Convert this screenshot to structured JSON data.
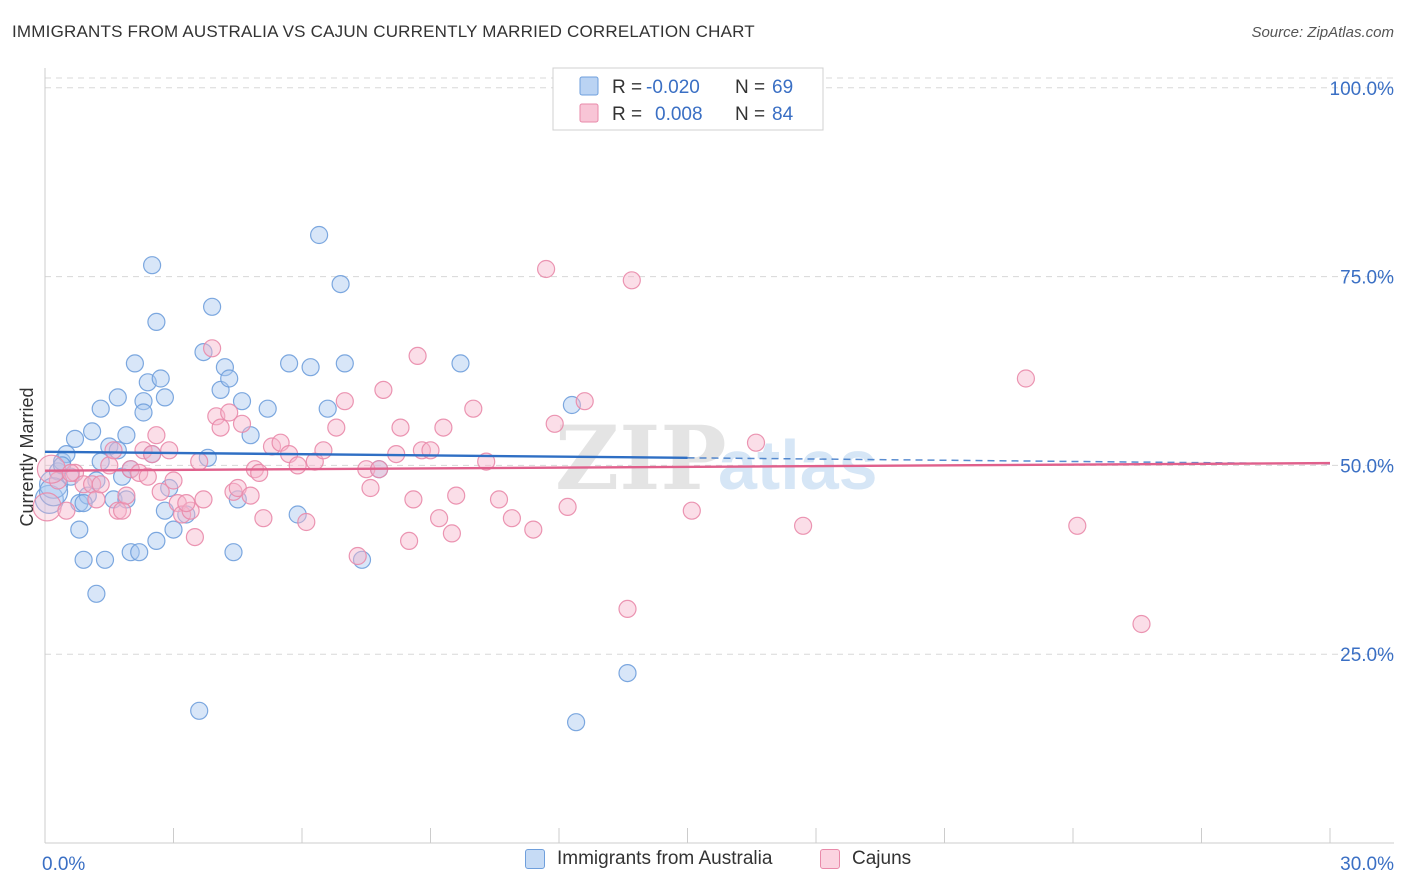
{
  "title": "IMMIGRANTS FROM AUSTRALIA VS CAJUN CURRENTLY MARRIED CORRELATION CHART",
  "source": "Source: ZipAtlas.com",
  "watermark": {
    "zip": "ZIP",
    "atlas": "atlas"
  },
  "colors": {
    "blue_fill": "#a9c8f0",
    "blue_stroke": "#6f9fdc",
    "blue_line": "#2f6fc4",
    "pink_fill": "#f6b6cc",
    "pink_stroke": "#e98aaa",
    "pink_line": "#e0608c",
    "value_text": "#3a6fc4",
    "grid": "#d8d8d8"
  },
  "legend_top": {
    "rows": [
      {
        "r_label": "R =",
        "r_value": "-0.020",
        "n_label": "N =",
        "n_value": "69"
      },
      {
        "r_label": "R =",
        "r_value": "0.008",
        "n_label": "N =",
        "n_value": "84"
      }
    ]
  },
  "legend_bottom": [
    {
      "label": "Immigrants from Australia"
    },
    {
      "label": "Cajuns"
    }
  ],
  "chart_data": {
    "type": "scatter",
    "xlabel": "",
    "ylabel": "Currently Married",
    "xlim": [
      0,
      30
    ],
    "ylim": [
      0,
      105
    ],
    "x_tick_labels": [
      "0.0%",
      "30.0%"
    ],
    "y_ticks": [
      25,
      50,
      75,
      100
    ],
    "y_tick_labels": [
      "25.0%",
      "50.0%",
      "75.0%",
      "100.0%"
    ],
    "grid": true,
    "series": [
      {
        "name": "Immigrants from Australia",
        "r": -0.02,
        "n": 69,
        "trend": {
          "x": [
            0,
            15,
            30
          ],
          "y": [
            51.8,
            51.0,
            50.2
          ],
          "solid_until": 15
        },
        "points": [
          [
            0.1,
            45.5
          ],
          [
            0.2,
            47.5
          ],
          [
            0.3,
            49.2
          ],
          [
            0.4,
            50.5
          ],
          [
            0.5,
            51.5
          ],
          [
            0.6,
            48.5
          ],
          [
            0.7,
            53.5
          ],
          [
            0.8,
            45.0
          ],
          [
            0.8,
            41.5
          ],
          [
            0.9,
            37.5
          ],
          [
            1.0,
            46.0
          ],
          [
            1.1,
            54.5
          ],
          [
            1.2,
            48.0
          ],
          [
            1.3,
            50.5
          ],
          [
            1.2,
            33.0
          ],
          [
            1.3,
            57.5
          ],
          [
            1.4,
            37.5
          ],
          [
            1.5,
            52.5
          ],
          [
            1.6,
            45.5
          ],
          [
            1.7,
            52.0
          ],
          [
            1.7,
            59.0
          ],
          [
            1.8,
            48.5
          ],
          [
            1.9,
            54.0
          ],
          [
            1.9,
            45.5
          ],
          [
            2.0,
            49.5
          ],
          [
            2.0,
            38.5
          ],
          [
            2.1,
            63.5
          ],
          [
            2.2,
            38.5
          ],
          [
            2.3,
            58.5
          ],
          [
            2.3,
            57.0
          ],
          [
            2.4,
            61.0
          ],
          [
            2.5,
            51.5
          ],
          [
            2.5,
            76.5
          ],
          [
            2.6,
            40.0
          ],
          [
            2.6,
            69.0
          ],
          [
            2.7,
            61.5
          ],
          [
            2.8,
            44.0
          ],
          [
            2.8,
            59.0
          ],
          [
            2.9,
            47.0
          ],
          [
            3.0,
            41.5
          ],
          [
            3.3,
            43.5
          ],
          [
            3.6,
            17.5
          ],
          [
            3.7,
            65.0
          ],
          [
            3.8,
            51.0
          ],
          [
            3.9,
            71.0
          ],
          [
            4.1,
            60.0
          ],
          [
            4.2,
            63.0
          ],
          [
            4.3,
            61.5
          ],
          [
            4.4,
            38.5
          ],
          [
            4.5,
            45.5
          ],
          [
            4.6,
            58.5
          ],
          [
            4.8,
            54.0
          ],
          [
            5.2,
            57.5
          ],
          [
            5.7,
            63.5
          ],
          [
            5.9,
            43.5
          ],
          [
            6.2,
            63.0
          ],
          [
            6.4,
            80.5
          ],
          [
            6.6,
            57.5
          ],
          [
            6.9,
            74.0
          ],
          [
            7.0,
            63.5
          ],
          [
            7.4,
            37.5
          ],
          [
            7.8,
            49.5
          ],
          [
            9.7,
            63.5
          ],
          [
            12.3,
            58.0
          ],
          [
            12.4,
            16.0
          ],
          [
            13.6,
            22.5
          ],
          [
            0.2,
            46.5
          ],
          [
            0.4,
            50.0
          ],
          [
            0.9,
            45.0
          ]
        ]
      },
      {
        "name": "Cajuns",
        "r": 0.008,
        "n": 84,
        "trend": {
          "x": [
            0,
            30
          ],
          "y": [
            49.3,
            50.3
          ],
          "solid_until": 30
        },
        "points": [
          [
            0.05,
            44.5
          ],
          [
            0.3,
            48.0
          ],
          [
            0.5,
            44.0
          ],
          [
            0.7,
            49.0
          ],
          [
            0.9,
            47.5
          ],
          [
            1.1,
            47.5
          ],
          [
            1.2,
            45.5
          ],
          [
            1.3,
            47.5
          ],
          [
            1.5,
            50.0
          ],
          [
            1.6,
            52.0
          ],
          [
            1.7,
            44.0
          ],
          [
            1.8,
            44.0
          ],
          [
            1.9,
            46.0
          ],
          [
            2.0,
            49.5
          ],
          [
            2.2,
            49.0
          ],
          [
            2.3,
            52.0
          ],
          [
            2.4,
            48.5
          ],
          [
            2.5,
            51.5
          ],
          [
            2.6,
            54.0
          ],
          [
            2.7,
            46.5
          ],
          [
            2.9,
            52.0
          ],
          [
            3.0,
            48.0
          ],
          [
            3.1,
            45.0
          ],
          [
            3.2,
            43.5
          ],
          [
            3.4,
            44.0
          ],
          [
            3.5,
            40.5
          ],
          [
            3.6,
            50.5
          ],
          [
            3.7,
            45.5
          ],
          [
            3.9,
            65.5
          ],
          [
            4.0,
            56.5
          ],
          [
            4.1,
            55.0
          ],
          [
            4.3,
            57.0
          ],
          [
            4.4,
            46.5
          ],
          [
            4.5,
            47.0
          ],
          [
            4.6,
            55.5
          ],
          [
            4.8,
            46.0
          ],
          [
            4.9,
            49.5
          ],
          [
            5.0,
            49.0
          ],
          [
            5.1,
            43.0
          ],
          [
            5.3,
            52.5
          ],
          [
            5.5,
            53.0
          ],
          [
            5.7,
            51.5
          ],
          [
            5.9,
            50.0
          ],
          [
            6.1,
            42.5
          ],
          [
            6.3,
            50.5
          ],
          [
            6.5,
            52.0
          ],
          [
            6.8,
            55.0
          ],
          [
            7.0,
            58.5
          ],
          [
            7.3,
            38.0
          ],
          [
            7.5,
            49.5
          ],
          [
            7.6,
            47.0
          ],
          [
            7.8,
            49.5
          ],
          [
            7.9,
            60.0
          ],
          [
            8.2,
            51.5
          ],
          [
            8.3,
            55.0
          ],
          [
            8.5,
            40.0
          ],
          [
            8.6,
            45.5
          ],
          [
            8.7,
            64.5
          ],
          [
            8.8,
            52.0
          ],
          [
            9.0,
            52.0
          ],
          [
            9.2,
            43.0
          ],
          [
            9.3,
            55.0
          ],
          [
            9.5,
            41.0
          ],
          [
            9.6,
            46.0
          ],
          [
            10.0,
            57.5
          ],
          [
            10.3,
            50.5
          ],
          [
            10.6,
            45.5
          ],
          [
            10.9,
            43.0
          ],
          [
            11.4,
            41.5
          ],
          [
            11.7,
            76.0
          ],
          [
            11.9,
            55.5
          ],
          [
            12.2,
            44.5
          ],
          [
            12.6,
            58.5
          ],
          [
            13.6,
            31.0
          ],
          [
            13.7,
            74.5
          ],
          [
            15.1,
            44.0
          ],
          [
            16.6,
            53.0
          ],
          [
            17.7,
            42.0
          ],
          [
            22.9,
            61.5
          ],
          [
            24.1,
            42.0
          ],
          [
            25.6,
            29.0
          ],
          [
            0.15,
            49.5
          ],
          [
            0.6,
            49.0
          ],
          [
            3.3,
            45.0
          ]
        ]
      }
    ]
  }
}
